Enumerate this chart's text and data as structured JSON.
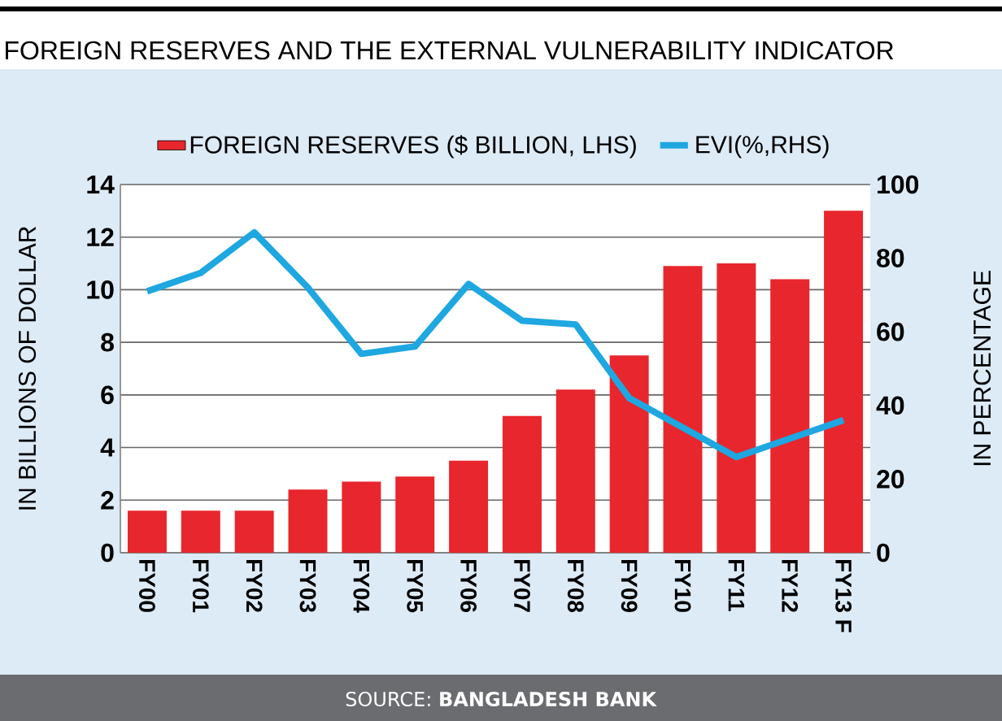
{
  "chart_data": {
    "type": "bar",
    "title": "FOREIGN RESERVES AND THE EXTERNAL VULNERABILITY INDICATOR",
    "categories": [
      "FY00",
      "FY01",
      "FY02",
      "FY03",
      "FY04",
      "FY05",
      "FY06",
      "FY07",
      "FY08",
      "FY09",
      "FY10",
      "FY11",
      "FY12",
      "FY13 F"
    ],
    "series": [
      {
        "name": "FOREIGN RESERVES ($ BILLION, LHS)",
        "type": "bar",
        "color": "#e8262d",
        "values": [
          1.6,
          1.6,
          1.6,
          2.4,
          2.7,
          2.9,
          3.5,
          5.2,
          6.2,
          7.5,
          10.9,
          11.0,
          10.4,
          13.0
        ]
      },
      {
        "name": "EVI(%,RHS)",
        "type": "line",
        "axis": "y2",
        "color": "#1ea7e1",
        "values": [
          71,
          76,
          87,
          72,
          54,
          56,
          73,
          63,
          62,
          42,
          34,
          26,
          31,
          36
        ]
      }
    ],
    "ylim": [
      0,
      14
    ],
    "yticks": [
      0,
      2,
      4,
      6,
      8,
      10,
      12,
      14
    ],
    "y2lim": [
      0,
      100
    ],
    "y2ticks": [
      0,
      20,
      40,
      60,
      80,
      100
    ],
    "ylabel": "IN BILLIONS OF DOLLAR",
    "y2label": "IN PERCENTAGE",
    "grid": "y",
    "legend": "top",
    "annotations": [
      "SOURCE: **BANGLADESH BANK**"
    ]
  }
}
